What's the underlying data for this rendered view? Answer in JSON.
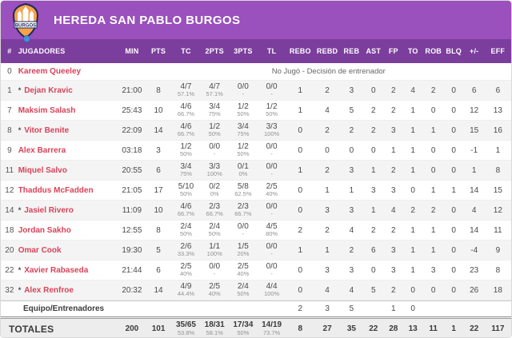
{
  "header": {
    "team_name": "HEREDA SAN PABLO BURGOS",
    "logo_text": "BURGOS",
    "colors": {
      "topbar": "#9a50bd",
      "column_header": "#7b3e9d",
      "player_name": "#d8435a",
      "logo_orange": "#f5a24b",
      "logo_navy": "#1b2a5e",
      "ball_blue": "#4a90d9"
    }
  },
  "table": {
    "columns": [
      "#",
      "JUGADORES",
      "MIN",
      "PTS",
      "TC",
      "2PTS",
      "3PTS",
      "TL",
      "REBO",
      "REBD",
      "REB",
      "AST",
      "FP",
      "TO",
      "ROB",
      "BLQ",
      "+/-",
      "EFF"
    ],
    "players": [
      {
        "num": "0",
        "starter": false,
        "name": "Kareem Queeley",
        "dnp": "No Jugó - Decisión de entrenador"
      },
      {
        "num": "1",
        "starter": true,
        "name": "Dejan Kravic",
        "min": "21:00",
        "pts": "8",
        "tc": {
          "v": "4/7",
          "p": "57.1%"
        },
        "p2": {
          "v": "4/7",
          "p": "57.1%"
        },
        "p3": {
          "v": "0/0",
          "p": "-"
        },
        "tl": {
          "v": "0/0",
          "p": "-"
        },
        "rebo": "1",
        "rebd": "2",
        "reb": "3",
        "ast": "0",
        "fp": "2",
        "to": "4",
        "rob": "2",
        "blq": "0",
        "pm": "6",
        "eff": "6"
      },
      {
        "num": "7",
        "starter": false,
        "name": "Maksim Salash",
        "min": "25:43",
        "pts": "10",
        "tc": {
          "v": "4/6",
          "p": "66.7%"
        },
        "p2": {
          "v": "3/4",
          "p": "75%"
        },
        "p3": {
          "v": "1/2",
          "p": "50%"
        },
        "tl": {
          "v": "1/2",
          "p": "50%"
        },
        "rebo": "1",
        "rebd": "4",
        "reb": "5",
        "ast": "2",
        "fp": "2",
        "to": "1",
        "rob": "0",
        "blq": "0",
        "pm": "12",
        "eff": "13"
      },
      {
        "num": "8",
        "starter": true,
        "name": "Vitor Benite",
        "min": "22:09",
        "pts": "14",
        "tc": {
          "v": "4/6",
          "p": "66.7%"
        },
        "p2": {
          "v": "1/2",
          "p": "50%"
        },
        "p3": {
          "v": "3/4",
          "p": "75%"
        },
        "tl": {
          "v": "3/3",
          "p": "100%"
        },
        "rebo": "0",
        "rebd": "2",
        "reb": "2",
        "ast": "2",
        "fp": "3",
        "to": "1",
        "rob": "1",
        "blq": "0",
        "pm": "15",
        "eff": "16"
      },
      {
        "num": "9",
        "starter": false,
        "name": "Alex Barrera",
        "min": "03:18",
        "pts": "3",
        "tc": {
          "v": "1/2",
          "p": "50%"
        },
        "p2": {
          "v": "0/0",
          "p": "-"
        },
        "p3": {
          "v": "1/2",
          "p": "50%"
        },
        "tl": {
          "v": "0/0",
          "p": "-"
        },
        "rebo": "0",
        "rebd": "0",
        "reb": "0",
        "ast": "0",
        "fp": "1",
        "to": "1",
        "rob": "0",
        "blq": "0",
        "pm": "-1",
        "eff": "1"
      },
      {
        "num": "11",
        "starter": false,
        "name": "Miquel Salvo",
        "min": "20:55",
        "pts": "6",
        "tc": {
          "v": "3/4",
          "p": "75%"
        },
        "p2": {
          "v": "3/3",
          "p": "100%"
        },
        "p3": {
          "v": "0/1",
          "p": "0%"
        },
        "tl": {
          "v": "0/0",
          "p": "-"
        },
        "rebo": "1",
        "rebd": "2",
        "reb": "3",
        "ast": "1",
        "fp": "2",
        "to": "1",
        "rob": "0",
        "blq": "0",
        "pm": "1",
        "eff": "8"
      },
      {
        "num": "12",
        "starter": false,
        "name": "Thaddus McFadden",
        "min": "21:05",
        "pts": "17",
        "tc": {
          "v": "5/10",
          "p": "50%"
        },
        "p2": {
          "v": "0/2",
          "p": "0%"
        },
        "p3": {
          "v": "5/8",
          "p": "62.5%"
        },
        "tl": {
          "v": "2/5",
          "p": "40%"
        },
        "rebo": "0",
        "rebd": "1",
        "reb": "1",
        "ast": "3",
        "fp": "3",
        "to": "0",
        "rob": "1",
        "blq": "1",
        "pm": "14",
        "eff": "15"
      },
      {
        "num": "14",
        "starter": true,
        "name": "Jasiel Rivero",
        "min": "11:09",
        "pts": "10",
        "tc": {
          "v": "4/6",
          "p": "66.7%"
        },
        "p2": {
          "v": "2/3",
          "p": "66.7%"
        },
        "p3": {
          "v": "2/3",
          "p": "66.7%"
        },
        "tl": {
          "v": "0/0",
          "p": "-"
        },
        "rebo": "0",
        "rebd": "3",
        "reb": "3",
        "ast": "1",
        "fp": "4",
        "to": "2",
        "rob": "2",
        "blq": "0",
        "pm": "4",
        "eff": "12"
      },
      {
        "num": "18",
        "starter": false,
        "name": "Jordan Sakho",
        "min": "12:55",
        "pts": "8",
        "tc": {
          "v": "2/4",
          "p": "50%"
        },
        "p2": {
          "v": "2/4",
          "p": "50%"
        },
        "p3": {
          "v": "0/0",
          "p": "-"
        },
        "tl": {
          "v": "4/5",
          "p": "80%"
        },
        "rebo": "2",
        "rebd": "2",
        "reb": "4",
        "ast": "2",
        "fp": "2",
        "to": "1",
        "rob": "1",
        "blq": "0",
        "pm": "14",
        "eff": "11"
      },
      {
        "num": "20",
        "starter": false,
        "name": "Omar Cook",
        "min": "19:30",
        "pts": "5",
        "tc": {
          "v": "2/6",
          "p": "33.3%"
        },
        "p2": {
          "v": "1/1",
          "p": "100%"
        },
        "p3": {
          "v": "1/5",
          "p": "20%"
        },
        "tl": {
          "v": "0/0",
          "p": "-"
        },
        "rebo": "1",
        "rebd": "1",
        "reb": "2",
        "ast": "6",
        "fp": "3",
        "to": "1",
        "rob": "1",
        "blq": "0",
        "pm": "-4",
        "eff": "9"
      },
      {
        "num": "22",
        "starter": true,
        "name": "Xavier Rabaseda",
        "min": "21:44",
        "pts": "6",
        "tc": {
          "v": "2/5",
          "p": "40%"
        },
        "p2": {
          "v": "0/0",
          "p": "-"
        },
        "p3": {
          "v": "2/5",
          "p": "40%"
        },
        "tl": {
          "v": "0/0",
          "p": "-"
        },
        "rebo": "0",
        "rebd": "3",
        "reb": "3",
        "ast": "0",
        "fp": "3",
        "to": "1",
        "rob": "3",
        "blq": "0",
        "pm": "23",
        "eff": "8"
      },
      {
        "num": "32",
        "starter": true,
        "name": "Alex Renfroe",
        "min": "20:32",
        "pts": "14",
        "tc": {
          "v": "4/9",
          "p": "44.4%"
        },
        "p2": {
          "v": "2/5",
          "p": "40%"
        },
        "p3": {
          "v": "2/4",
          "p": "50%"
        },
        "tl": {
          "v": "4/4",
          "p": "100%"
        },
        "rebo": "0",
        "rebd": "4",
        "reb": "4",
        "ast": "5",
        "fp": "2",
        "to": "0",
        "rob": "0",
        "blq": "0",
        "pm": "26",
        "eff": "18"
      }
    ],
    "team_row": {
      "label": "Equipo/Entrenadores",
      "rebo": "2",
      "rebd": "3",
      "reb": "5",
      "ast": "",
      "fp": "1",
      "to": "0",
      "rob": "",
      "blq": "",
      "pm": "",
      "eff": ""
    },
    "totals": {
      "label": "TOTALES",
      "min": "200",
      "pts": "101",
      "tc": {
        "v": "35/65",
        "p": "53.8%"
      },
      "p2": {
        "v": "18/31",
        "p": "58.1%"
      },
      "p3": {
        "v": "17/34",
        "p": "50%"
      },
      "tl": {
        "v": "14/19",
        "p": "73.7%"
      },
      "rebo": "8",
      "rebd": "27",
      "reb": "35",
      "ast": "22",
      "fp": "28",
      "to": "13",
      "rob": "11",
      "blq": "1",
      "pm": "22",
      "eff": "117"
    }
  }
}
